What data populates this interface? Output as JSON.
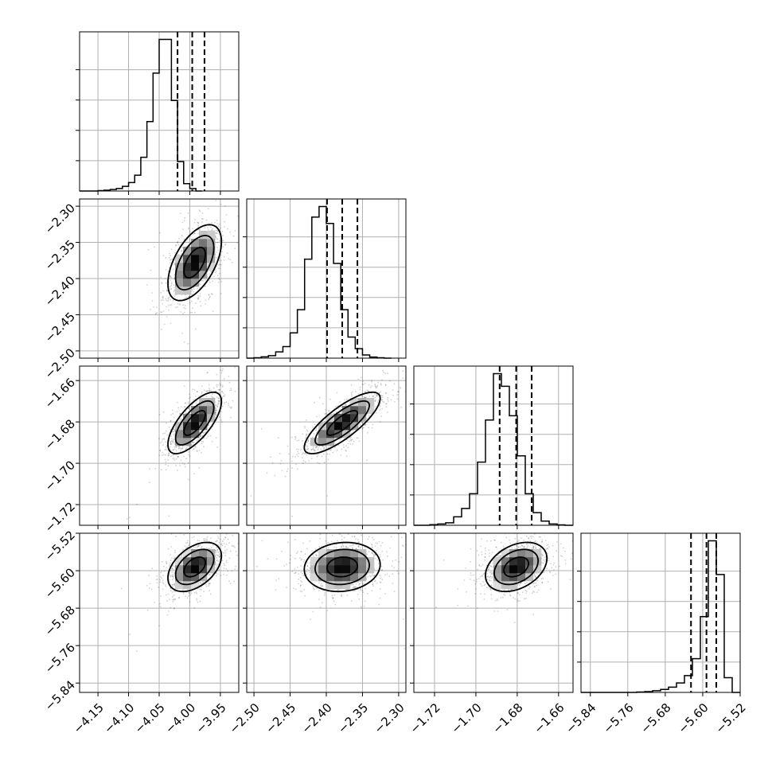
{
  "chart_data": {
    "type": "corner",
    "grid": true,
    "parameters": [
      {
        "index": 0,
        "range": [
          -4.18,
          -3.92
        ],
        "ticks": [
          -4.15,
          -4.1,
          -4.05,
          -4.0,
          -3.95
        ],
        "tick_labels": [
          "−4.15",
          "−4.10",
          "−4.05",
          "−4.00",
          "−3.95"
        ],
        "quantiles": [
          -4.02,
          -3.996,
          -3.976
        ],
        "histogram": {
          "bin_start": -4.18,
          "bin_width": 0.01,
          "counts": [
            0,
            0,
            0,
            2,
            4,
            7,
            12,
            22,
            40,
            75,
            160,
            330,
            560,
            720,
            720,
            430,
            140,
            35,
            12,
            0
          ]
        }
      },
      {
        "index": 1,
        "range": [
          -2.51,
          -2.29
        ],
        "ticks": [
          -2.5,
          -2.45,
          -2.4,
          -2.35,
          -2.3
        ],
        "tick_labels": [
          "−2.50",
          "−2.45",
          "−2.40",
          "−2.35",
          "−2.30"
        ],
        "quantiles": [
          -2.399,
          -2.378,
          -2.357
        ],
        "histogram": {
          "bin_start": -2.51,
          "bin_width": 0.01,
          "counts": [
            0,
            2,
            6,
            12,
            30,
            55,
            120,
            230,
            470,
            670,
            720,
            640,
            450,
            230,
            100,
            45,
            15,
            5,
            2,
            0
          ]
        }
      },
      {
        "index": 2,
        "range": [
          -1.73,
          -1.653
        ],
        "ticks": [
          -1.72,
          -1.7,
          -1.68,
          -1.66
        ],
        "tick_labels": [
          "−1.72",
          "−1.70",
          "−1.68",
          "−1.66"
        ],
        "quantiles": [
          -1.6885,
          -1.6805,
          -1.673
        ],
        "histogram": {
          "bin_start": -1.73,
          "bin_width": 0.00385,
          "counts": [
            0,
            0,
            3,
            6,
            12,
            40,
            80,
            150,
            300,
            500,
            720,
            660,
            520,
            330,
            150,
            60,
            20,
            6,
            2,
            0
          ]
        }
      },
      {
        "index": 3,
        "range": [
          -5.86,
          -5.52
        ],
        "ticks": [
          -5.84,
          -5.76,
          -5.68,
          -5.6,
          -5.52
        ],
        "tick_labels": [
          "−5.84",
          "−5.76",
          "−5.68",
          "−5.60",
          "−5.52"
        ],
        "quantiles": [
          -5.625,
          -5.592,
          -5.571
        ],
        "histogram": {
          "bin_start": -5.86,
          "bin_width": 0.017,
          "counts": [
            0,
            0,
            0,
            0,
            0,
            0,
            0,
            2,
            4,
            8,
            14,
            25,
            45,
            80,
            160,
            360,
            720,
            560,
            70,
            0
          ]
        }
      }
    ],
    "pairs": [
      {
        "x": 0,
        "y": 1,
        "mean": [
          -3.992,
          -2.378
        ],
        "sd": [
          0.025,
          0.03
        ],
        "rho": 0.55
      },
      {
        "x": 0,
        "y": 2,
        "mean": [
          -3.992,
          -1.6805
        ],
        "sd": [
          0.025,
          0.0085
        ],
        "rho": 0.7
      },
      {
        "x": 1,
        "y": 2,
        "mean": [
          -2.378,
          -1.6805
        ],
        "sd": [
          0.03,
          0.0085
        ],
        "rho": 0.8
      },
      {
        "x": 0,
        "y": 3,
        "mean": [
          -3.992,
          -5.592
        ],
        "sd": [
          0.025,
          0.03
        ],
        "rho": 0.45
      },
      {
        "x": 1,
        "y": 3,
        "mean": [
          -2.378,
          -5.592
        ],
        "sd": [
          0.03,
          0.03
        ],
        "rho": 0.1
      },
      {
        "x": 2,
        "y": 3,
        "mean": [
          -1.6805,
          -5.592
        ],
        "sd": [
          0.0085,
          0.03
        ],
        "rho": 0.35
      }
    ]
  }
}
